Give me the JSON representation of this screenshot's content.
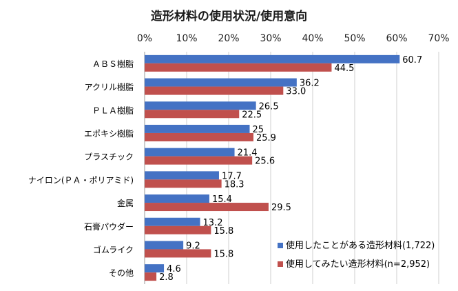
{
  "chart_data": {
    "type": "bar",
    "orientation": "horizontal",
    "title": "造形材料の使用状況/使用意向",
    "categories": [
      "ＡＢＳ樹脂",
      "アクリル樹脂",
      "ＰＬＡ樹脂",
      "エポキシ樹脂",
      "プラスチック",
      "ナイロン(ＰＡ・ポリアミド)",
      "金属",
      "石膏パウダー",
      "ゴムライク",
      "その他"
    ],
    "series": [
      {
        "name": "使用したことがある造形材料(1,722)",
        "color": "#4472C4",
        "values": [
          60.7,
          36.2,
          26.5,
          25,
          21.4,
          17.7,
          15.4,
          13.2,
          9.2,
          4.6
        ],
        "labels": [
          "60.7",
          "36.2",
          "26.5",
          "25",
          "21.4",
          "17.7",
          "15.4",
          "13.2",
          "9.2",
          "4.6"
        ]
      },
      {
        "name": "使用してみたい造形材料(n=2,952)",
        "color": "#C0504D",
        "values": [
          44.5,
          33.0,
          22.5,
          25.9,
          25.6,
          18.3,
          29.5,
          15.8,
          15.8,
          2.8
        ],
        "labels": [
          "44.5",
          "33.0",
          "22.5",
          "25.9",
          "25.6",
          "18.3",
          "29.5",
          "15.8",
          "15.8",
          "2.8"
        ]
      }
    ],
    "xlim": [
      0,
      70
    ],
    "xticks": [
      "0%",
      "10%",
      "20%",
      "30%",
      "40%",
      "50%",
      "60%",
      "70%"
    ],
    "grid": true,
    "legend_position": "bottom-right"
  }
}
